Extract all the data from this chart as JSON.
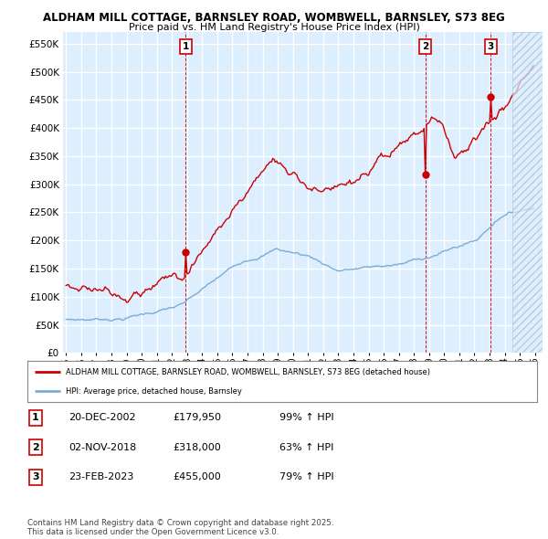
{
  "title_line1": "ALDHAM MILL COTTAGE, BARNSLEY ROAD, WOMBWELL, BARNSLEY, S73 8EG",
  "title_line2": "Price paid vs. HM Land Registry's House Price Index (HPI)",
  "sale_prices": [
    179950,
    318000,
    455000
  ],
  "sale_labels": [
    "1",
    "2",
    "3"
  ],
  "legend_label_red": "ALDHAM MILL COTTAGE, BARNSLEY ROAD, WOMBWELL, BARNSLEY, S73 8EG (detached house)",
  "legend_label_blue": "HPI: Average price, detached house, Barnsley",
  "footer": "Contains HM Land Registry data © Crown copyright and database right 2025.\nThis data is licensed under the Open Government Licence v3.0.",
  "red_color": "#cc0000",
  "blue_color": "#7aadd4",
  "bg_color": "#ddeeff",
  "grid_color": "#ffffff",
  "ylim": [
    0,
    570000
  ],
  "yticks": [
    0,
    50000,
    100000,
    150000,
    200000,
    250000,
    300000,
    350000,
    400000,
    450000,
    500000,
    550000
  ],
  "x_start_year": 1995,
  "x_end_year": 2026,
  "sale_year_floats": [
    2002.958,
    2018.833,
    2023.125
  ]
}
